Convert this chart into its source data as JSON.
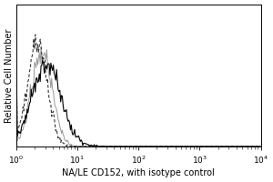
{
  "title": "",
  "xlabel": "NA/LE CD152, with isotype control",
  "ylabel": "Relative Cell Number",
  "background_color": "#ffffff",
  "line_solid_color": "#000000",
  "line_dashed_color": "#333333",
  "line_gray_color": "#999999",
  "seed": 7,
  "xlabel_fontsize": 7,
  "ylabel_fontsize": 7,
  "tick_fontsize": 6.5
}
